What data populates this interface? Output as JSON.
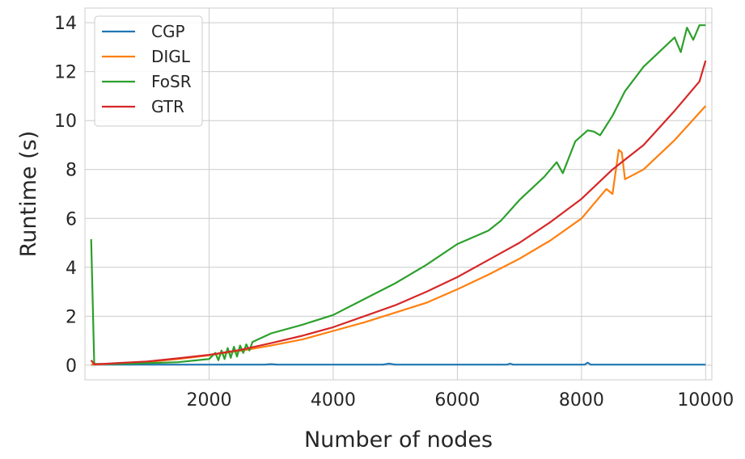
{
  "chart_data": {
    "type": "line",
    "title": "",
    "xlabel": "Number of nodes",
    "ylabel": "Runtime (s)",
    "xlim": [
      0,
      10100
    ],
    "ylim": [
      -0.6,
      14.6
    ],
    "xticks": [
      2000,
      4000,
      6000,
      8000,
      10000
    ],
    "yticks": [
      0,
      2,
      4,
      6,
      8,
      10,
      12,
      14
    ],
    "grid": true,
    "legend_position": "top-left",
    "series": [
      {
        "name": "CGP",
        "color": "#1f77b4",
        "x": [
          100,
          1000,
          2000,
          2900,
          3000,
          3100,
          4800,
          4900,
          5000,
          6800,
          6850,
          6900,
          8050,
          8100,
          8150,
          10000
        ],
        "y": [
          0.02,
          0.02,
          0.02,
          0.02,
          0.04,
          0.02,
          0.02,
          0.06,
          0.02,
          0.02,
          0.06,
          0.02,
          0.02,
          0.1,
          0.02,
          0.02
        ]
      },
      {
        "name": "DIGL",
        "color": "#ff7f0e",
        "x": [
          100,
          500,
          1000,
          1500,
          2000,
          2500,
          3000,
          3500,
          4000,
          4500,
          5000,
          5500,
          6000,
          6500,
          7000,
          7500,
          8000,
          8400,
          8500,
          8600,
          8650,
          8700,
          9000,
          9500,
          10000
        ],
        "y": [
          0.02,
          0.05,
          0.13,
          0.25,
          0.4,
          0.58,
          0.8,
          1.05,
          1.4,
          1.75,
          2.15,
          2.55,
          3.1,
          3.7,
          4.35,
          5.1,
          6.0,
          7.2,
          7.0,
          8.8,
          8.7,
          7.6,
          8.0,
          9.2,
          10.6
        ]
      },
      {
        "name": "FoSR",
        "color": "#2ca02c",
        "x": [
          100,
          150,
          500,
          1000,
          1500,
          2000,
          2100,
          2150,
          2200,
          2250,
          2300,
          2350,
          2400,
          2450,
          2500,
          2550,
          2600,
          2650,
          2700,
          3000,
          3500,
          4000,
          4500,
          5000,
          5500,
          6000,
          6500,
          6700,
          7000,
          7400,
          7600,
          7700,
          7900,
          8100,
          8200,
          8300,
          8500,
          8700,
          9000,
          9500,
          9600,
          9700,
          9800,
          9900,
          10000
        ],
        "y": [
          5.15,
          0.05,
          0.05,
          0.08,
          0.12,
          0.25,
          0.5,
          0.2,
          0.6,
          0.25,
          0.7,
          0.3,
          0.75,
          0.35,
          0.8,
          0.5,
          0.85,
          0.6,
          0.95,
          1.3,
          1.65,
          2.05,
          2.7,
          3.35,
          4.1,
          4.95,
          5.5,
          5.9,
          6.75,
          7.7,
          8.3,
          7.85,
          9.15,
          9.6,
          9.55,
          9.4,
          10.2,
          11.2,
          12.2,
          13.4,
          12.8,
          13.8,
          13.3,
          13.9,
          13.9
        ]
      },
      {
        "name": "GTR",
        "color": "#d62728",
        "x": [
          100,
          150,
          500,
          1000,
          1500,
          2000,
          2500,
          3000,
          3500,
          4000,
          4500,
          5000,
          5500,
          6000,
          6500,
          7000,
          7500,
          8000,
          8500,
          9000,
          9500,
          9900,
          10000
        ],
        "y": [
          0.2,
          0.03,
          0.08,
          0.15,
          0.28,
          0.42,
          0.62,
          0.9,
          1.2,
          1.55,
          2.0,
          2.45,
          3.0,
          3.6,
          4.3,
          5.0,
          5.85,
          6.8,
          8.0,
          9.0,
          10.4,
          11.6,
          12.45
        ]
      }
    ]
  }
}
